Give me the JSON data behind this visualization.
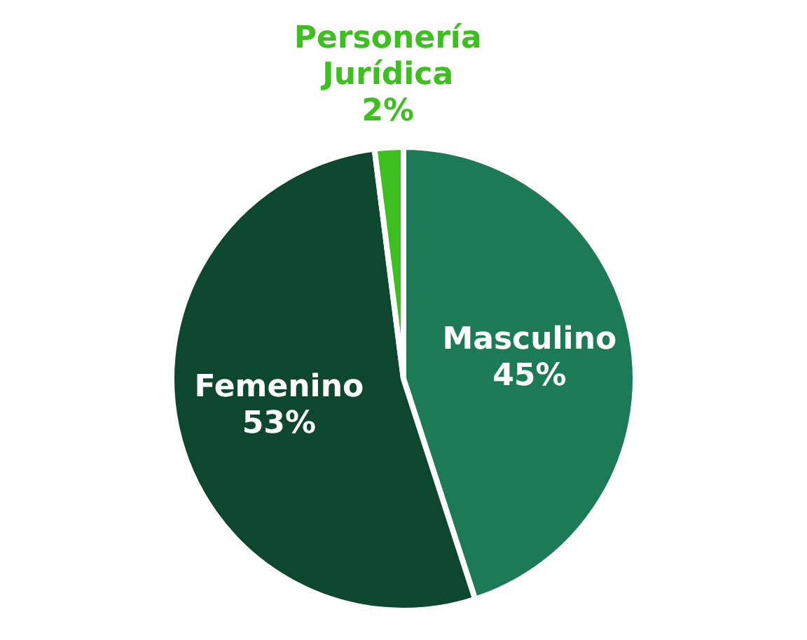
{
  "chart_data": {
    "type": "pie",
    "categories": [
      "Masculino",
      "Femenino",
      "Personería Jurídica"
    ],
    "values": [
      45,
      53,
      2
    ],
    "value_labels": [
      "45%",
      "53%",
      "2%"
    ],
    "colors": [
      "#1d7a58",
      "#0e4730",
      "#3dbf1f"
    ],
    "legend": false
  }
}
